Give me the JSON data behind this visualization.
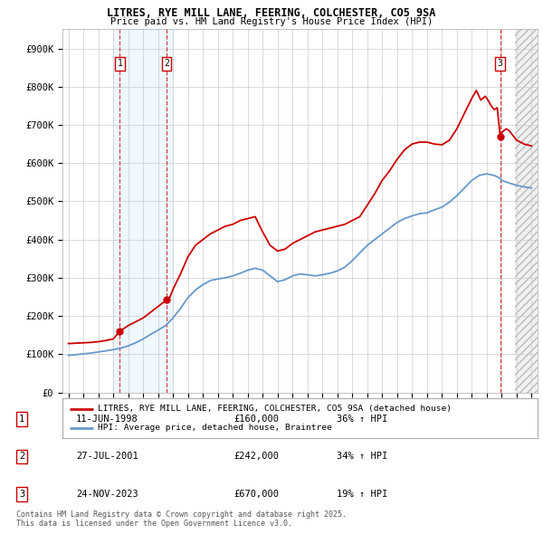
{
  "title1": "LITRES, RYE MILL LANE, FEERING, COLCHESTER, CO5 9SA",
  "title2": "Price paid vs. HM Land Registry's House Price Index (HPI)",
  "xlim": [
    1994.6,
    2026.4
  ],
  "ylim": [
    0,
    950000
  ],
  "yticks": [
    0,
    100000,
    200000,
    300000,
    400000,
    500000,
    600000,
    700000,
    800000,
    900000
  ],
  "ytick_labels": [
    "£0",
    "£100K",
    "£200K",
    "£300K",
    "£400K",
    "£500K",
    "£600K",
    "£700K",
    "£800K",
    "£900K"
  ],
  "sale_dates": [
    1998.44,
    2001.57,
    2023.9
  ],
  "sale_prices": [
    160000,
    242000,
    670000
  ],
  "sale_labels": [
    "1",
    "2",
    "3"
  ],
  "legend_line1": "LITRES, RYE MILL LANE, FEERING, COLCHESTER, CO5 9SA (detached house)",
  "legend_line2": "HPI: Average price, detached house, Braintree",
  "table": [
    {
      "label": "1",
      "date": "11-JUN-1998",
      "price": "£160,000",
      "hpi": "36% ↑ HPI"
    },
    {
      "label": "2",
      "date": "27-JUL-2001",
      "price": "£242,000",
      "hpi": "34% ↑ HPI"
    },
    {
      "label": "3",
      "date": "24-NOV-2023",
      "price": "£670,000",
      "hpi": "19% ↑ HPI"
    }
  ],
  "footnote": "Contains HM Land Registry data © Crown copyright and database right 2025.\nThis data is licensed under the Open Government Licence v3.0.",
  "red_color": "#cc0000",
  "blue_color": "#6699cc",
  "shade_color": "#ddeeff",
  "bg_color": "#ffffff",
  "grid_color": "#cccccc",
  "hpi_data": [
    [
      1995.0,
      97000
    ],
    [
      1995.5,
      99000
    ],
    [
      1996.0,
      101000
    ],
    [
      1996.5,
      103000
    ],
    [
      1997.0,
      106000
    ],
    [
      1997.5,
      109000
    ],
    [
      1998.0,
      112000
    ],
    [
      1998.5,
      116000
    ],
    [
      1999.0,
      122000
    ],
    [
      1999.5,
      130000
    ],
    [
      2000.0,
      140000
    ],
    [
      2000.5,
      152000
    ],
    [
      2001.0,
      163000
    ],
    [
      2001.5,
      175000
    ],
    [
      2002.0,
      195000
    ],
    [
      2002.5,
      220000
    ],
    [
      2003.0,
      248000
    ],
    [
      2003.5,
      268000
    ],
    [
      2004.0,
      282000
    ],
    [
      2004.5,
      293000
    ],
    [
      2005.0,
      297000
    ],
    [
      2005.5,
      300000
    ],
    [
      2006.0,
      305000
    ],
    [
      2006.5,
      312000
    ],
    [
      2007.0,
      320000
    ],
    [
      2007.5,
      325000
    ],
    [
      2008.0,
      320000
    ],
    [
      2008.5,
      305000
    ],
    [
      2009.0,
      290000
    ],
    [
      2009.5,
      295000
    ],
    [
      2010.0,
      305000
    ],
    [
      2010.5,
      310000
    ],
    [
      2011.0,
      308000
    ],
    [
      2011.5,
      305000
    ],
    [
      2012.0,
      308000
    ],
    [
      2012.5,
      312000
    ],
    [
      2013.0,
      318000
    ],
    [
      2013.5,
      328000
    ],
    [
      2014.0,
      345000
    ],
    [
      2014.5,
      365000
    ],
    [
      2015.0,
      385000
    ],
    [
      2015.5,
      400000
    ],
    [
      2016.0,
      415000
    ],
    [
      2016.5,
      430000
    ],
    [
      2017.0,
      445000
    ],
    [
      2017.5,
      455000
    ],
    [
      2018.0,
      462000
    ],
    [
      2018.5,
      468000
    ],
    [
      2019.0,
      470000
    ],
    [
      2019.5,
      478000
    ],
    [
      2020.0,
      485000
    ],
    [
      2020.5,
      498000
    ],
    [
      2021.0,
      515000
    ],
    [
      2021.5,
      535000
    ],
    [
      2022.0,
      555000
    ],
    [
      2022.5,
      568000
    ],
    [
      2023.0,
      572000
    ],
    [
      2023.5,
      568000
    ],
    [
      2023.9,
      560000
    ],
    [
      2024.0,
      555000
    ],
    [
      2024.5,
      548000
    ],
    [
      2025.0,
      542000
    ],
    [
      2025.5,
      538000
    ],
    [
      2026.0,
      535000
    ]
  ],
  "prop_data": [
    [
      1995.0,
      128000
    ],
    [
      1995.5,
      129000
    ],
    [
      1996.0,
      130000
    ],
    [
      1996.5,
      131000
    ],
    [
      1997.0,
      133000
    ],
    [
      1997.5,
      136000
    ],
    [
      1998.0,
      140000
    ],
    [
      1998.44,
      160000
    ],
    [
      1998.5,
      162000
    ],
    [
      1999.0,
      175000
    ],
    [
      1999.5,
      185000
    ],
    [
      2000.0,
      195000
    ],
    [
      2000.5,
      210000
    ],
    [
      2001.0,
      225000
    ],
    [
      2001.57,
      242000
    ],
    [
      2001.8,
      250000
    ],
    [
      2002.0,
      270000
    ],
    [
      2002.5,
      310000
    ],
    [
      2003.0,
      355000
    ],
    [
      2003.5,
      385000
    ],
    [
      2004.0,
      400000
    ],
    [
      2004.5,
      415000
    ],
    [
      2005.0,
      425000
    ],
    [
      2005.5,
      435000
    ],
    [
      2006.0,
      440000
    ],
    [
      2006.5,
      450000
    ],
    [
      2007.0,
      455000
    ],
    [
      2007.5,
      460000
    ],
    [
      2008.0,
      420000
    ],
    [
      2008.5,
      385000
    ],
    [
      2009.0,
      370000
    ],
    [
      2009.5,
      375000
    ],
    [
      2010.0,
      390000
    ],
    [
      2010.5,
      400000
    ],
    [
      2011.0,
      410000
    ],
    [
      2011.5,
      420000
    ],
    [
      2012.0,
      425000
    ],
    [
      2012.5,
      430000
    ],
    [
      2013.0,
      435000
    ],
    [
      2013.5,
      440000
    ],
    [
      2014.0,
      450000
    ],
    [
      2014.5,
      460000
    ],
    [
      2015.0,
      490000
    ],
    [
      2015.5,
      520000
    ],
    [
      2016.0,
      555000
    ],
    [
      2016.5,
      580000
    ],
    [
      2017.0,
      610000
    ],
    [
      2017.5,
      635000
    ],
    [
      2018.0,
      650000
    ],
    [
      2018.5,
      655000
    ],
    [
      2019.0,
      655000
    ],
    [
      2019.5,
      650000
    ],
    [
      2020.0,
      648000
    ],
    [
      2020.5,
      660000
    ],
    [
      2021.0,
      690000
    ],
    [
      2021.5,
      730000
    ],
    [
      2022.0,
      770000
    ],
    [
      2022.3,
      790000
    ],
    [
      2022.6,
      765000
    ],
    [
      2022.9,
      775000
    ],
    [
      2023.0,
      770000
    ],
    [
      2023.3,
      750000
    ],
    [
      2023.5,
      740000
    ],
    [
      2023.7,
      745000
    ],
    [
      2023.9,
      670000
    ],
    [
      2024.0,
      680000
    ],
    [
      2024.3,
      690000
    ],
    [
      2024.5,
      685000
    ],
    [
      2024.8,
      670000
    ],
    [
      2025.0,
      660000
    ],
    [
      2025.5,
      650000
    ],
    [
      2026.0,
      645000
    ]
  ]
}
